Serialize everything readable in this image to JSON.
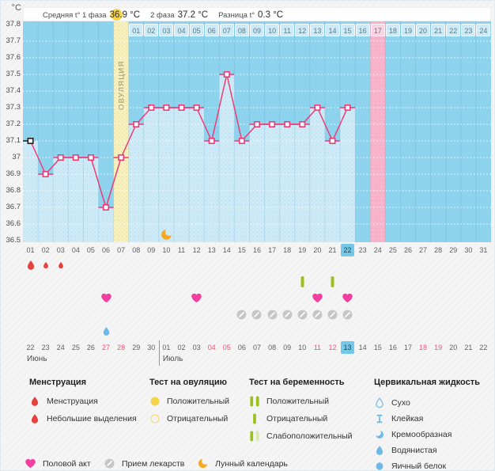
{
  "header": {
    "unit_label": "°C",
    "avg_label_1": "Средняя t° 1 фаза",
    "avg_value_1": "36.9 °C",
    "avg_label_2": "2 фаза",
    "avg_value_2": "37.2 °C",
    "diff_label": "Разница t°",
    "diff_value": "0.3 °C"
  },
  "chart_data": {
    "type": "line",
    "title": "Basal body temperature cycle chart",
    "ylabel": "°C",
    "ylim": [
      36.5,
      37.8
    ],
    "ytick_step": 0.1,
    "yticks": [
      "37.8",
      "37.7",
      "37.6",
      "37.5",
      "37.4",
      "37.3",
      "37.2",
      "37.1",
      "37",
      "36.9",
      "36.8",
      "36.7",
      "36.6",
      "36.5"
    ],
    "cycle_days": [
      "01",
      "02",
      "03",
      "04",
      "05",
      "06",
      "07",
      "08",
      "09",
      "10",
      "11",
      "12",
      "13",
      "14",
      "15",
      "16",
      "17",
      "18",
      "19",
      "20",
      "21",
      "22",
      "23",
      "24",
      "25",
      "26",
      "27",
      "28",
      "29",
      "30",
      "31"
    ],
    "upper_days": [
      "01",
      "02",
      "03",
      "04",
      "05",
      "06",
      "07",
      "08",
      "09",
      "10",
      "11",
      "12",
      "13",
      "14",
      "15",
      "16",
      "17",
      "18",
      "19",
      "20",
      "21",
      "22",
      "23",
      "24"
    ],
    "temperatures": [
      37.1,
      36.9,
      37.0,
      37.0,
      37.0,
      36.7,
      37.0,
      37.2,
      37.3,
      37.3,
      37.3,
      37.3,
      37.1,
      37.5,
      37.1,
      37.2,
      37.2,
      37.2,
      37.2,
      37.3,
      37.1,
      37.3
    ],
    "ovulation_cycle_day": 7,
    "ovulation_band_label": "ОВУЛЯЦИЯ",
    "pink_band_cycle_day": 24,
    "pink_upper_day_label": "17",
    "current_cycle_day_label": "22",
    "moon_cycle_day": 10,
    "grid": "dotted-white",
    "legend_position": "bottom"
  },
  "events": {
    "menstruation": [
      {
        "day": 1,
        "size": "large"
      },
      {
        "day": 2,
        "size": "small"
      },
      {
        "day": 3,
        "size": "small"
      }
    ],
    "pregnancy_test_negative_days": [
      19,
      21
    ],
    "intercourse_days": [
      6,
      12,
      20,
      22
    ],
    "medication_days": [
      15,
      16,
      17,
      18,
      19,
      20,
      21,
      22
    ],
    "cervical_watery_days": [
      6
    ]
  },
  "calendar": {
    "days": [
      {
        "label": "22"
      },
      {
        "label": "23"
      },
      {
        "label": "24"
      },
      {
        "label": "25"
      },
      {
        "label": "26"
      },
      {
        "label": "27",
        "red": true
      },
      {
        "label": "28",
        "red": true
      },
      {
        "label": "29"
      },
      {
        "label": "30"
      },
      {
        "label": "01"
      },
      {
        "label": "02"
      },
      {
        "label": "03"
      },
      {
        "label": "04",
        "red": true
      },
      {
        "label": "05",
        "red": true
      },
      {
        "label": "06"
      },
      {
        "label": "07"
      },
      {
        "label": "08"
      },
      {
        "label": "09"
      },
      {
        "label": "10"
      },
      {
        "label": "11",
        "red": true
      },
      {
        "label": "12",
        "red": true
      },
      {
        "label": "13",
        "today": true
      },
      {
        "label": "14"
      },
      {
        "label": "15"
      },
      {
        "label": "16"
      },
      {
        "label": "17"
      },
      {
        "label": "18",
        "red": true
      },
      {
        "label": "19",
        "red": true
      },
      {
        "label": "20"
      },
      {
        "label": "21"
      },
      {
        "label": "22"
      }
    ],
    "months": [
      {
        "name": "Июнь",
        "start_index": 0
      },
      {
        "name": "Июль",
        "start_index": 9
      }
    ]
  },
  "legend": {
    "sections": [
      {
        "title": "Менструация",
        "items": [
          {
            "icon": "menstruation-icon",
            "label": "Менструация"
          },
          {
            "icon": "spotting-icon",
            "label": "Небольшие выделения"
          }
        ]
      },
      {
        "title": "Тест на овуляцию",
        "items": [
          {
            "icon": "ovulation-positive-icon",
            "label": "Положительный"
          },
          {
            "icon": "ovulation-negative-icon",
            "label": "Отрицательный"
          }
        ]
      },
      {
        "title": "Тест на беременность",
        "items": [
          {
            "icon": "pregnancy-positive-icon",
            "label": "Положительный"
          },
          {
            "icon": "pregnancy-negative-icon",
            "label": "Отрицательный"
          },
          {
            "icon": "pregnancy-weak-positive-icon",
            "label": "Слабоположительный"
          }
        ]
      },
      {
        "title": "Цервикальная жидкость",
        "items": [
          {
            "icon": "dry-icon",
            "label": "Сухо"
          },
          {
            "icon": "sticky-icon",
            "label": "Клейкая"
          },
          {
            "icon": "creamy-icon",
            "label": "Кремообразная"
          },
          {
            "icon": "watery-icon",
            "label": "Водянистая"
          },
          {
            "icon": "eggwhite-icon",
            "label": "Яичный белок"
          }
        ]
      }
    ],
    "footer_items": [
      {
        "icon": "intercourse-icon",
        "label": "Половой акт"
      },
      {
        "icon": "medication-icon",
        "label": "Прием лекарств"
      },
      {
        "icon": "moon-calendar-icon",
        "label": "Лунный календарь"
      }
    ]
  },
  "colors": {
    "line": "#ee3a75",
    "first_point": "#1f1f1f",
    "chart_bg": "#8ed3ee",
    "chart_fill": "#cfeaf7",
    "chart_fill_dot": "#b7dff2",
    "ovulation_band": "#f7f1c0",
    "ovulation_band_dot": "#e9de8e",
    "pink_band": "#f7b4cb",
    "pink_band_dot": "#f2a3bf",
    "upper_cell": "#cdeaf8",
    "upper_cell_pink": "#fbd3e2",
    "today_bg": "#73c8ea",
    "weekend_text": "#f05578",
    "menstruation_red": "#e8403d",
    "heart_pink": "#f23fa0",
    "pill_gray": "#c6c6c6",
    "moon_orange": "#f6a723",
    "test_green": "#9cc11c",
    "test_green_pale": "#d9e8ab",
    "fluid_blue": "#6db9e9",
    "test_yellow": "#f6d34c"
  }
}
